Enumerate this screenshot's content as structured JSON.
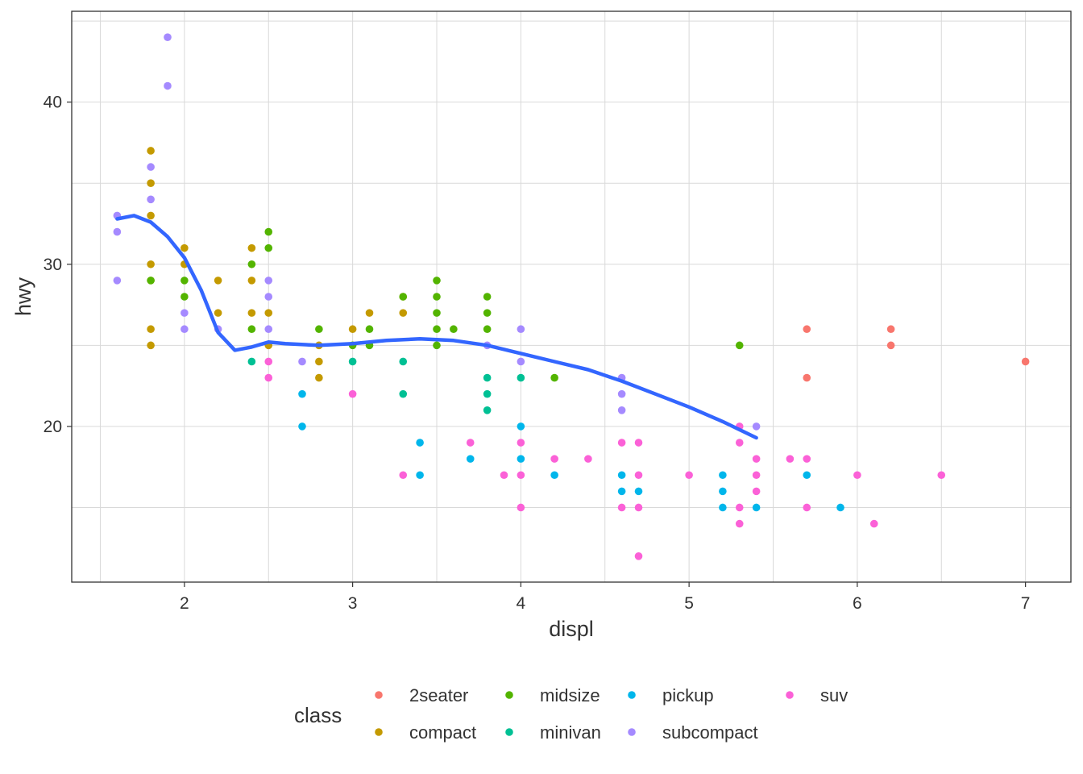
{
  "chart_data": {
    "type": "scatter",
    "title": "",
    "xlabel": "displ",
    "ylabel": "hwy",
    "xlim": [
      1.33,
      7.27
    ],
    "ylim": [
      10.4,
      45.6
    ],
    "x_ticks": [
      2,
      3,
      4,
      5,
      6,
      7
    ],
    "y_ticks": [
      20,
      30,
      40
    ],
    "grid": true,
    "legend_position": "bottom",
    "legend": {
      "title": "class",
      "entries": [
        "2seater",
        "compact",
        "midsize",
        "minivan",
        "pickup",
        "subcompact",
        "suv"
      ]
    },
    "colors": {
      "2seater": "#F8766D",
      "compact": "#C49A00",
      "midsize": "#53B400",
      "minivan": "#00C094",
      "pickup": "#00B6EB",
      "subcompact": "#A58AFF",
      "suv": "#FB61D7",
      "smooth": "#3366FF"
    },
    "series": [
      {
        "name": "2seater",
        "points": [
          [
            5.7,
            26
          ],
          [
            5.7,
            23
          ],
          [
            6.2,
            26
          ],
          [
            6.2,
            25
          ],
          [
            7.0,
            24
          ]
        ]
      },
      {
        "name": "compact",
        "points": [
          [
            1.8,
            37
          ],
          [
            1.8,
            35
          ],
          [
            1.8,
            33
          ],
          [
            1.8,
            30
          ],
          [
            1.8,
            29
          ],
          [
            1.8,
            26
          ],
          [
            1.8,
            25
          ],
          [
            2.0,
            31
          ],
          [
            2.0,
            30
          ],
          [
            2.2,
            29
          ],
          [
            2.2,
            27
          ],
          [
            2.4,
            31
          ],
          [
            2.4,
            29
          ],
          [
            2.4,
            27
          ],
          [
            2.5,
            27
          ],
          [
            2.5,
            25
          ],
          [
            2.8,
            25
          ],
          [
            2.8,
            24
          ],
          [
            2.8,
            23
          ],
          [
            3.0,
            26
          ],
          [
            3.1,
            27
          ],
          [
            3.3,
            28
          ],
          [
            3.3,
            27
          ]
        ]
      },
      {
        "name": "midsize",
        "points": [
          [
            1.8,
            29
          ],
          [
            2.0,
            29
          ],
          [
            2.0,
            28
          ],
          [
            2.4,
            30
          ],
          [
            2.4,
            26
          ],
          [
            2.5,
            32
          ],
          [
            2.5,
            31
          ],
          [
            2.8,
            26
          ],
          [
            3.0,
            25
          ],
          [
            3.1,
            26
          ],
          [
            3.1,
            25
          ],
          [
            3.3,
            28
          ],
          [
            3.5,
            29
          ],
          [
            3.5,
            28
          ],
          [
            3.5,
            27
          ],
          [
            3.5,
            26
          ],
          [
            3.5,
            25
          ],
          [
            3.6,
            26
          ],
          [
            3.8,
            28
          ],
          [
            3.8,
            27
          ],
          [
            3.8,
            26
          ],
          [
            4.2,
            23
          ],
          [
            5.3,
            25
          ]
        ]
      },
      {
        "name": "minivan",
        "points": [
          [
            2.4,
            24
          ],
          [
            3.0,
            24
          ],
          [
            3.3,
            24
          ],
          [
            3.3,
            22
          ],
          [
            3.8,
            23
          ],
          [
            3.8,
            22
          ],
          [
            3.8,
            21
          ],
          [
            4.0,
            23
          ]
        ]
      },
      {
        "name": "pickup",
        "points": [
          [
            2.7,
            22
          ],
          [
            2.7,
            20
          ],
          [
            3.4,
            19
          ],
          [
            3.4,
            17
          ],
          [
            3.7,
            18
          ],
          [
            4.0,
            20
          ],
          [
            4.0,
            18
          ],
          [
            4.2,
            17
          ],
          [
            4.6,
            17
          ],
          [
            4.6,
            16
          ],
          [
            4.7,
            16
          ],
          [
            5.2,
            17
          ],
          [
            5.2,
            16
          ],
          [
            5.2,
            15
          ],
          [
            5.4,
            15
          ],
          [
            5.7,
            17
          ],
          [
            5.9,
            15
          ]
        ]
      },
      {
        "name": "subcompact",
        "points": [
          [
            1.6,
            33
          ],
          [
            1.6,
            32
          ],
          [
            1.6,
            29
          ],
          [
            1.8,
            36
          ],
          [
            1.8,
            34
          ],
          [
            1.9,
            44
          ],
          [
            1.9,
            41
          ],
          [
            2.0,
            27
          ],
          [
            2.0,
            26
          ],
          [
            2.2,
            26
          ],
          [
            2.5,
            29
          ],
          [
            2.5,
            28
          ],
          [
            2.5,
            26
          ],
          [
            2.7,
            24
          ],
          [
            3.8,
            25
          ],
          [
            4.0,
            26
          ],
          [
            4.0,
            24
          ],
          [
            4.6,
            23
          ],
          [
            4.6,
            22
          ],
          [
            4.6,
            21
          ],
          [
            5.4,
            20
          ]
        ]
      },
      {
        "name": "suv",
        "points": [
          [
            2.5,
            24
          ],
          [
            2.5,
            23
          ],
          [
            3.0,
            22
          ],
          [
            3.3,
            17
          ],
          [
            3.7,
            19
          ],
          [
            3.9,
            17
          ],
          [
            4.0,
            19
          ],
          [
            4.0,
            17
          ],
          [
            4.0,
            15
          ],
          [
            4.2,
            18
          ],
          [
            4.4,
            18
          ],
          [
            4.6,
            19
          ],
          [
            4.6,
            15
          ],
          [
            4.7,
            19
          ],
          [
            4.7,
            17
          ],
          [
            4.7,
            15
          ],
          [
            4.7,
            12
          ],
          [
            5.0,
            17
          ],
          [
            5.3,
            20
          ],
          [
            5.3,
            19
          ],
          [
            5.3,
            15
          ],
          [
            5.3,
            14
          ],
          [
            5.4,
            18
          ],
          [
            5.4,
            17
          ],
          [
            5.4,
            16
          ],
          [
            5.6,
            18
          ],
          [
            5.7,
            18
          ],
          [
            5.7,
            15
          ],
          [
            6.0,
            17
          ],
          [
            6.1,
            14
          ],
          [
            6.5,
            17
          ]
        ]
      }
    ],
    "smooth": {
      "name": "loess",
      "x": [
        1.6,
        1.7,
        1.8,
        1.9,
        2.0,
        2.1,
        2.2,
        2.3,
        2.4,
        2.5,
        2.6,
        2.8,
        3.0,
        3.2,
        3.4,
        3.6,
        3.8,
        4.0,
        4.2,
        4.4,
        4.6,
        4.8,
        5.0,
        5.2,
        5.4
      ],
      "y": [
        32.8,
        33.0,
        32.6,
        31.7,
        30.4,
        28.4,
        25.8,
        24.7,
        24.9,
        25.2,
        25.1,
        25.0,
        25.1,
        25.3,
        25.4,
        25.3,
        25.0,
        24.5,
        24.0,
        23.5,
        22.8,
        22.0,
        21.2,
        20.3,
        19.3
      ]
    }
  }
}
